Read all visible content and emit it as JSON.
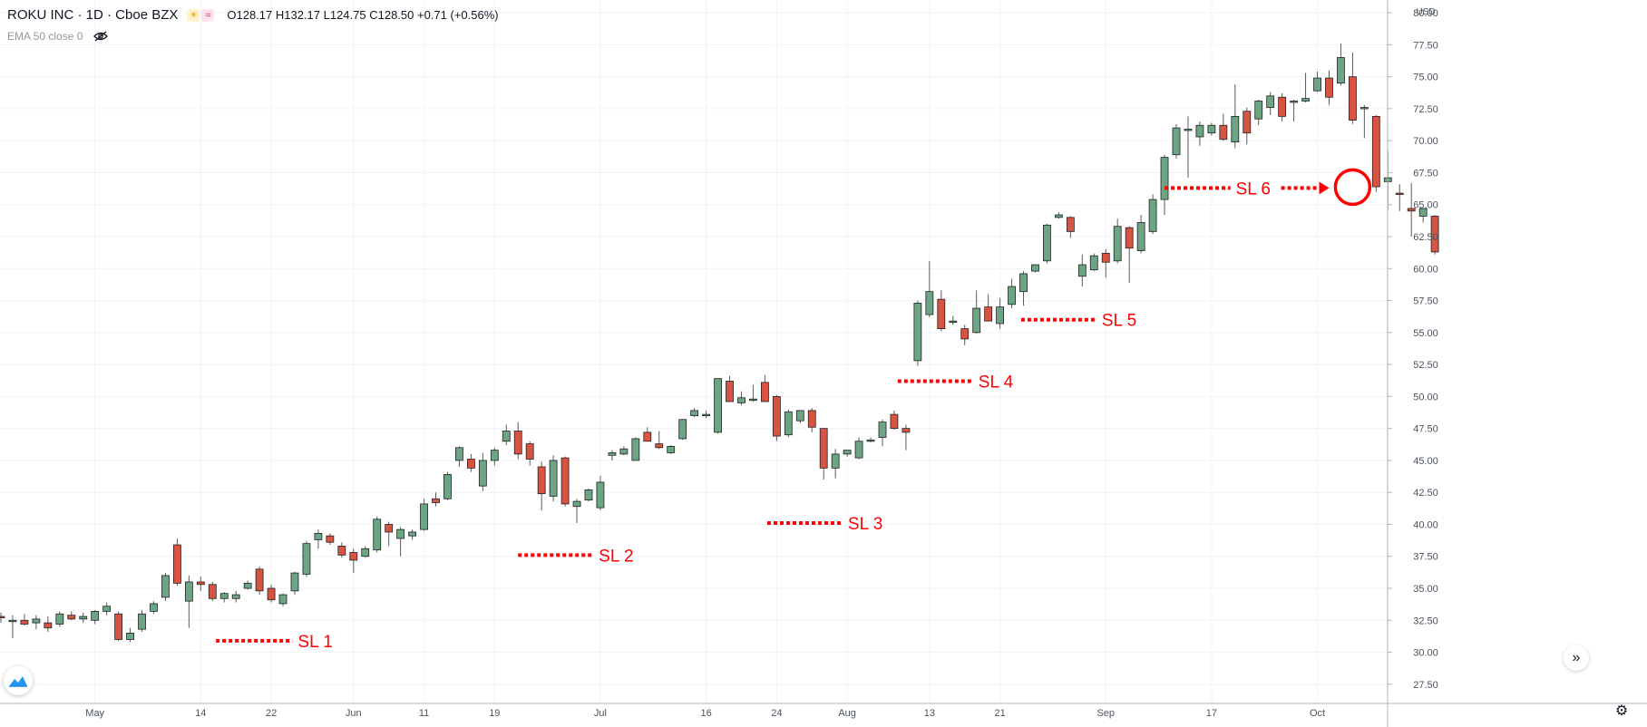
{
  "header": {
    "symbol": "ROKU INC · 1D · Cboe BZX",
    "ohlc": "O128.17 H132.17 L124.75 C128.50 +0.71 (+0.56%)",
    "indicator": "EMA 50 close 0",
    "icons": [
      "sun-icon",
      "wave-icon",
      "eye-hidden-icon"
    ]
  },
  "colors": {
    "up_body": "#6ba583",
    "down_body": "#d75442",
    "wick": "#5b5b5b",
    "grid": "#f0f3fa",
    "axis_text": "#4c525e",
    "annotation": "#ff0000"
  },
  "chart_data": {
    "type": "candlestick",
    "currency": "USD",
    "ylim": [
      26,
      81
    ],
    "y_ticks": [
      "27.50",
      "30.00",
      "32.50",
      "35.00",
      "37.50",
      "40.00",
      "42.50",
      "45.00",
      "47.50",
      "50.00",
      "52.50",
      "55.00",
      "57.50",
      "60.00",
      "62.50",
      "65.00",
      "67.50",
      "70.00",
      "72.50",
      "75.00",
      "77.50",
      "80.00"
    ],
    "x_ticks": [
      {
        "i": 8,
        "label": "May"
      },
      {
        "i": 17,
        "label": "14"
      },
      {
        "i": 23,
        "label": "22"
      },
      {
        "i": 30,
        "label": "Jun"
      },
      {
        "i": 36,
        "label": "11"
      },
      {
        "i": 42,
        "label": "19"
      },
      {
        "i": 51,
        "label": "Jul"
      },
      {
        "i": 60,
        "label": "16"
      },
      {
        "i": 66,
        "label": "24"
      },
      {
        "i": 72,
        "label": "Aug"
      },
      {
        "i": 79,
        "label": "13"
      },
      {
        "i": 85,
        "label": "21"
      },
      {
        "i": 94,
        "label": "Sep"
      },
      {
        "i": 103,
        "label": "17"
      },
      {
        "i": 112,
        "label": "Oct"
      }
    ],
    "candles": [
      [
        32.8,
        33.1,
        32.3,
        32.7
      ],
      [
        32.5,
        32.9,
        31.1,
        32.5
      ],
      [
        32.5,
        33.0,
        32.1,
        32.2
      ],
      [
        32.3,
        32.9,
        31.8,
        32.6
      ],
      [
        32.3,
        32.8,
        31.6,
        31.9
      ],
      [
        32.2,
        33.2,
        32.0,
        33.0
      ],
      [
        32.9,
        33.2,
        32.5,
        32.6
      ],
      [
        32.6,
        33.1,
        32.3,
        32.8
      ],
      [
        32.5,
        33.3,
        32.2,
        33.2
      ],
      [
        33.2,
        33.9,
        32.9,
        33.6
      ],
      [
        33.0,
        33.2,
        30.9,
        31.0
      ],
      [
        31.0,
        31.9,
        30.8,
        31.5
      ],
      [
        31.8,
        33.3,
        31.6,
        33.0
      ],
      [
        33.2,
        34.0,
        33.0,
        33.8
      ],
      [
        34.3,
        36.2,
        34.0,
        36.0
      ],
      [
        38.4,
        38.9,
        35.2,
        35.4
      ],
      [
        34.0,
        36.0,
        31.9,
        35.5
      ],
      [
        35.5,
        35.9,
        34.8,
        35.3
      ],
      [
        35.3,
        35.5,
        34.0,
        34.2
      ],
      [
        34.2,
        34.7,
        33.9,
        34.6
      ],
      [
        34.2,
        34.8,
        33.9,
        34.5
      ],
      [
        35.0,
        35.6,
        34.9,
        35.4
      ],
      [
        36.5,
        36.7,
        34.5,
        34.8
      ],
      [
        35.0,
        35.3,
        33.9,
        34.1
      ],
      [
        33.8,
        34.6,
        33.6,
        34.5
      ],
      [
        34.8,
        36.3,
        34.5,
        36.2
      ],
      [
        36.1,
        38.7,
        35.9,
        38.5
      ],
      [
        38.8,
        39.6,
        38.1,
        39.3
      ],
      [
        39.1,
        39.3,
        38.4,
        38.6
      ],
      [
        38.3,
        38.6,
        37.4,
        37.6
      ],
      [
        37.8,
        38.1,
        36.2,
        37.2
      ],
      [
        37.5,
        38.3,
        37.4,
        38.1
      ],
      [
        38.0,
        40.6,
        37.8,
        40.4
      ],
      [
        40.0,
        40.2,
        38.3,
        39.4
      ],
      [
        38.9,
        39.8,
        37.5,
        39.6
      ],
      [
        39.1,
        39.6,
        38.8,
        39.4
      ],
      [
        39.6,
        42.0,
        39.5,
        41.6
      ],
      [
        42.0,
        42.5,
        41.4,
        41.7
      ],
      [
        42.0,
        44.1,
        41.9,
        43.9
      ],
      [
        45.0,
        46.1,
        44.5,
        46.0
      ],
      [
        45.1,
        45.5,
        44.1,
        44.4
      ],
      [
        43.0,
        45.6,
        42.6,
        45.0
      ],
      [
        45.0,
        46.0,
        44.6,
        45.8
      ],
      [
        46.5,
        47.8,
        46.2,
        47.3
      ],
      [
        47.3,
        48.0,
        45.1,
        45.5
      ],
      [
        46.3,
        46.5,
        44.6,
        45.1
      ],
      [
        44.5,
        44.9,
        41.1,
        42.4
      ],
      [
        42.2,
        45.4,
        41.8,
        45.0
      ],
      [
        45.2,
        45.3,
        41.4,
        41.6
      ],
      [
        41.4,
        42.0,
        40.1,
        41.8
      ],
      [
        41.9,
        42.8,
        41.8,
        42.7
      ],
      [
        41.3,
        43.8,
        41.1,
        43.3
      ],
      [
        45.4,
        45.8,
        45.0,
        45.6
      ],
      [
        45.5,
        46.1,
        45.4,
        45.9
      ],
      [
        45.0,
        46.8,
        45.0,
        46.7
      ],
      [
        47.2,
        47.6,
        46.6,
        46.5
      ],
      [
        46.3,
        47.3,
        45.9,
        46.0
      ],
      [
        45.6,
        46.2,
        45.5,
        46.1
      ],
      [
        46.7,
        48.2,
        46.6,
        48.2
      ],
      [
        48.5,
        49.1,
        48.4,
        48.9
      ],
      [
        48.6,
        48.9,
        48.3,
        48.6
      ],
      [
        47.2,
        51.4,
        47.1,
        51.4
      ],
      [
        51.2,
        51.6,
        49.6,
        49.6
      ],
      [
        49.5,
        50.4,
        49.3,
        49.9
      ],
      [
        49.7,
        50.9,
        49.6,
        49.8
      ],
      [
        51.1,
        51.7,
        49.8,
        49.6
      ],
      [
        50.0,
        50.1,
        46.5,
        46.9
      ],
      [
        47.0,
        49.0,
        46.8,
        48.8
      ],
      [
        48.1,
        48.9,
        47.9,
        48.9
      ],
      [
        48.9,
        49.1,
        47.2,
        47.6
      ],
      [
        47.5,
        47.5,
        43.5,
        44.4
      ],
      [
        44.4,
        45.9,
        43.6,
        45.5
      ],
      [
        45.5,
        45.8,
        45.3,
        45.8
      ],
      [
        45.2,
        46.8,
        45.1,
        46.5
      ],
      [
        46.5,
        46.8,
        46.4,
        46.6
      ],
      [
        46.8,
        48.2,
        46.1,
        48.0
      ],
      [
        48.6,
        48.9,
        47.4,
        47.5
      ],
      [
        47.5,
        47.8,
        45.8,
        47.2
      ],
      [
        52.8,
        57.5,
        52.4,
        57.3
      ],
      [
        56.4,
        60.6,
        56.2,
        58.2
      ],
      [
        57.6,
        58.3,
        55.1,
        55.3
      ],
      [
        55.9,
        56.3,
        55.6,
        55.9
      ],
      [
        55.3,
        55.6,
        54.0,
        54.5
      ],
      [
        55.0,
        58.3,
        54.9,
        56.9
      ],
      [
        57.0,
        58.0,
        56.1,
        55.9
      ],
      [
        55.7,
        57.7,
        55.3,
        57.0
      ],
      [
        57.2,
        59.2,
        56.9,
        58.6
      ],
      [
        58.2,
        59.8,
        57.1,
        59.6
      ],
      [
        59.8,
        60.3,
        59.7,
        60.3
      ],
      [
        60.6,
        63.5,
        60.4,
        63.4
      ],
      [
        64.0,
        64.4,
        63.9,
        64.2
      ],
      [
        64.0,
        64.1,
        62.4,
        62.9
      ],
      [
        59.4,
        61.1,
        58.6,
        60.3
      ],
      [
        59.9,
        61.2,
        59.8,
        61.0
      ],
      [
        61.2,
        61.5,
        59.3,
        60.5
      ],
      [
        60.6,
        63.9,
        60.4,
        63.3
      ],
      [
        63.2,
        63.3,
        58.9,
        61.6
      ],
      [
        61.4,
        64.2,
        61.2,
        63.6
      ],
      [
        62.9,
        65.8,
        62.7,
        65.4
      ],
      [
        65.4,
        68.9,
        64.2,
        68.7
      ],
      [
        68.9,
        71.3,
        68.6,
        71.0
      ],
      [
        70.9,
        71.9,
        67.1,
        70.9
      ],
      [
        70.3,
        71.5,
        69.6,
        71.2
      ],
      [
        70.6,
        71.4,
        70.4,
        71.2
      ],
      [
        71.2,
        72.1,
        70.0,
        70.1
      ],
      [
        69.9,
        74.4,
        69.4,
        71.9
      ],
      [
        72.3,
        72.6,
        69.7,
        70.6
      ],
      [
        71.7,
        73.2,
        71.2,
        73.1
      ],
      [
        72.6,
        73.8,
        72.0,
        73.5
      ],
      [
        73.4,
        73.7,
        71.5,
        71.9
      ],
      [
        73.0,
        73.2,
        71.5,
        73.1
      ],
      [
        73.1,
        75.3,
        73.0,
        73.3
      ],
      [
        73.9,
        75.4,
        73.8,
        74.9
      ],
      [
        74.9,
        75.5,
        72.8,
        73.4
      ],
      [
        74.5,
        77.6,
        74.3,
        76.5
      ],
      [
        75.0,
        76.9,
        71.3,
        71.6
      ],
      [
        72.6,
        72.8,
        70.2,
        72.6
      ],
      [
        71.9,
        72.0,
        66.0,
        66.4
      ],
      [
        66.8,
        69.2,
        64.6,
        67.1
      ],
      [
        65.9,
        66.6,
        64.5,
        65.8
      ],
      [
        64.7,
        66.7,
        62.5,
        64.5
      ],
      [
        64.1,
        64.2,
        63.6,
        64.7
      ],
      [
        64.1,
        64.2,
        61.1,
        61.3
      ]
    ],
    "annotations": [
      {
        "label": "SL 1",
        "price": 30.9,
        "from": 18.3,
        "to": 24.8
      },
      {
        "label": "SL 2",
        "price": 37.6,
        "from": 44.0,
        "to": 50.4
      },
      {
        "label": "SL 3",
        "price": 40.1,
        "from": 65.2,
        "to": 71.6
      },
      {
        "label": "SL 4",
        "price": 51.2,
        "from": 76.3,
        "to": 82.7
      },
      {
        "label": "SL 5",
        "price": 56.0,
        "from": 86.8,
        "to": 93.2
      },
      {
        "label": "SL 6",
        "price": 66.3,
        "from": 99.0,
        "to": 104.6,
        "arrow_to": 113.0,
        "circle_at": 115.0
      }
    ]
  }
}
